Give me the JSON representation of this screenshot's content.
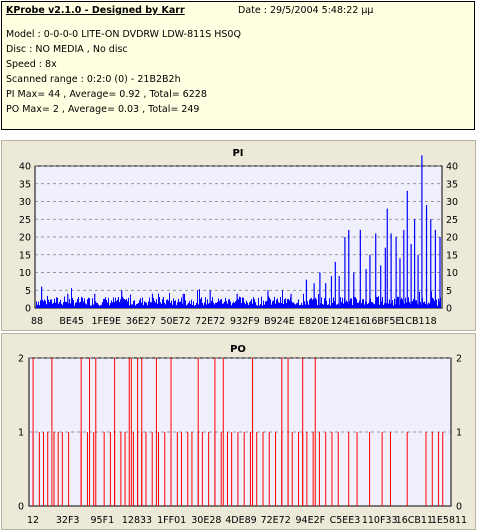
{
  "header": {
    "title": "KProbe v2.1.0 - Designed by Karr",
    "date": "Date : 29/5/2004 5:48:22 μμ",
    "model": "Model : 0-0-0-0 LITE-ON DVDRW LDW-811S   HS0Q",
    "disc": "Disc : NO MEDIA , No disc",
    "speed": "Speed : 8x",
    "scanned_range": "Scanned range : 0:2:0 (0) - 21B2B2h",
    "pi_stats": "PI Max= 44 , Average= 0.92 , Total= 6228",
    "po_stats": "PO Max= 2 , Average= 0.03 , Total= 249"
  },
  "colors": {
    "pi_bars": "#0000ff",
    "po_bars": "#ff0000",
    "plot_bg": "#f0f0fc",
    "panel_bg": "#ece9d8",
    "title": "#000080"
  },
  "chart_data": [
    {
      "type": "bar",
      "title": "PI",
      "ylim": [
        0,
        40
      ],
      "yticks": [
        "0",
        "5",
        "10",
        "15",
        "20",
        "25",
        "30",
        "35",
        "40"
      ],
      "xticks": [
        "88",
        "BE45",
        "1FE9E",
        "36E27",
        "50E72",
        "72E72",
        "932F9",
        "B924E",
        "E820E",
        "124E16",
        "16BF5E",
        "1CB118"
      ],
      "grid": true,
      "spikes": [
        {
          "x": 0.012,
          "value": 6
        },
        {
          "x": 0.08,
          "value": 4
        },
        {
          "x": 0.15,
          "value": 4
        },
        {
          "x": 0.22,
          "value": 5
        },
        {
          "x": 0.3,
          "value": 4
        },
        {
          "x": 0.38,
          "value": 4
        },
        {
          "x": 0.45,
          "value": 5
        },
        {
          "x": 0.52,
          "value": 4
        },
        {
          "x": 0.6,
          "value": 5
        },
        {
          "x": 0.66,
          "value": 4
        },
        {
          "x": 0.7,
          "value": 8
        },
        {
          "x": 0.72,
          "value": 7
        },
        {
          "x": 0.735,
          "value": 10
        },
        {
          "x": 0.75,
          "value": 7
        },
        {
          "x": 0.765,
          "value": 9
        },
        {
          "x": 0.775,
          "value": 13
        },
        {
          "x": 0.785,
          "value": 9
        },
        {
          "x": 0.8,
          "value": 20
        },
        {
          "x": 0.81,
          "value": 22
        },
        {
          "x": 0.823,
          "value": 10
        },
        {
          "x": 0.84,
          "value": 22
        },
        {
          "x": 0.855,
          "value": 11
        },
        {
          "x": 0.865,
          "value": 15
        },
        {
          "x": 0.88,
          "value": 21
        },
        {
          "x": 0.893,
          "value": 12
        },
        {
          "x": 0.905,
          "value": 17
        },
        {
          "x": 0.91,
          "value": 28
        },
        {
          "x": 0.92,
          "value": 21
        },
        {
          "x": 0.933,
          "value": 20
        },
        {
          "x": 0.943,
          "value": 14
        },
        {
          "x": 0.953,
          "value": 22
        },
        {
          "x": 0.962,
          "value": 33
        },
        {
          "x": 0.972,
          "value": 18
        },
        {
          "x": 0.981,
          "value": 25
        },
        {
          "x": 0.99,
          "value": 15
        },
        {
          "x": 1.0,
          "value": 44
        },
        {
          "x": 1.012,
          "value": 29
        },
        {
          "x": 1.023,
          "value": 25
        },
        {
          "x": 1.035,
          "value": 22
        },
        {
          "x": 1.047,
          "value": 20
        }
      ]
    },
    {
      "type": "bar",
      "title": "PO",
      "ylim": [
        0,
        2
      ],
      "yticks": [
        "0",
        "1",
        "2"
      ],
      "xticks": [
        "12",
        "32F3",
        "95F1",
        "12833",
        "1FF01",
        "30E28",
        "4DE89",
        "72E72",
        "94E2F",
        "C5EE3",
        "110F33",
        "16CB11",
        "1E5811"
      ],
      "grid": true,
      "ones": [
        0.005,
        0.02,
        0.03,
        0.04,
        0.055,
        0.065,
        0.075,
        0.09,
        0.12,
        0.135,
        0.15,
        0.175,
        0.19,
        0.2,
        0.215,
        0.225,
        0.245,
        0.255,
        0.265,
        0.275,
        0.29,
        0.305,
        0.32,
        0.335,
        0.35,
        0.36,
        0.375,
        0.385,
        0.4,
        0.41,
        0.425,
        0.44,
        0.455,
        0.47,
        0.48,
        0.495,
        0.51,
        0.525,
        0.54,
        0.555,
        0.57,
        0.585,
        0.6,
        0.615,
        0.625,
        0.64,
        0.65,
        0.66,
        0.675,
        0.69,
        0.705,
        0.72,
        0.735,
        0.76,
        0.78,
        0.81,
        0.84,
        0.86,
        0.9,
        0.945,
        0.96,
        0.975,
        0.985
      ],
      "twos": [
        0.005,
        0.05,
        0.12,
        0.14,
        0.155,
        0.2,
        0.235,
        0.24,
        0.255,
        0.265,
        0.3,
        0.335,
        0.4,
        0.44,
        0.46,
        0.53,
        0.6,
        0.615,
        0.65,
        0.68
      ]
    }
  ]
}
